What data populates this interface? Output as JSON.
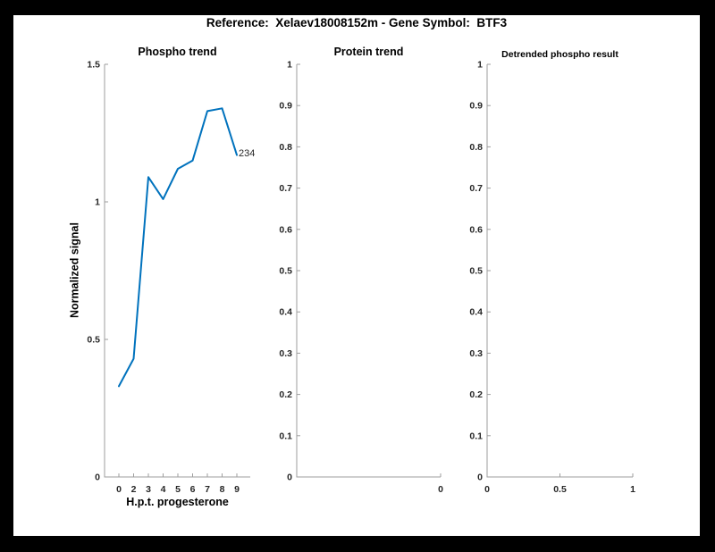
{
  "figure": {
    "title": "Reference:  Xelaev18008152m - Gene Symbol:  BTF3"
  },
  "colors": {
    "line": "#0072BD",
    "axis": "#9e9e9e",
    "tick_text": "#262626",
    "background": "#000000",
    "canvas": "#ffffff"
  },
  "chart_data": [
    {
      "type": "line",
      "title": "Phospho trend",
      "xlabel": "H.p.t. progesterone",
      "ylabel": "Normalized signal",
      "x_tick_labels": [
        "0",
        "2",
        "3",
        "4",
        "5",
        "6",
        "7",
        "8",
        "9"
      ],
      "y_tick_labels": [
        "0",
        "0.5",
        "1",
        "1.5"
      ],
      "ylim": [
        0,
        1.5
      ],
      "x": [
        0,
        2,
        3,
        4,
        5,
        6,
        7,
        8,
        9
      ],
      "values": [
        0.33,
        0.43,
        1.09,
        1.01,
        1.12,
        1.15,
        1.33,
        1.34,
        1.17
      ],
      "end_label": "234",
      "line_color": "#0072BD",
      "legend": "none",
      "grid": "off"
    },
    {
      "type": "line",
      "title": "Protein trend",
      "xlabel": "",
      "ylabel": "",
      "x_tick_labels": [
        "0"
      ],
      "y_tick_labels": [
        "0",
        "0.1",
        "0.2",
        "0.3",
        "0.4",
        "0.5",
        "0.6",
        "0.7",
        "0.8",
        "0.9",
        "1"
      ],
      "ylim": [
        0,
        1
      ],
      "values": [],
      "legend": "none",
      "grid": "off"
    },
    {
      "type": "line",
      "title": "Detrended phospho result",
      "xlabel": "",
      "ylabel": "",
      "x_tick_labels": [
        "0",
        "0.5",
        "1"
      ],
      "y_tick_labels": [
        "0",
        "0.1",
        "0.2",
        "0.3",
        "0.4",
        "0.5",
        "0.6",
        "0.7",
        "0.8",
        "0.9",
        "1"
      ],
      "ylim": [
        0,
        1
      ],
      "xlim": [
        0,
        1
      ],
      "values": [],
      "legend": "none",
      "grid": "off"
    }
  ]
}
